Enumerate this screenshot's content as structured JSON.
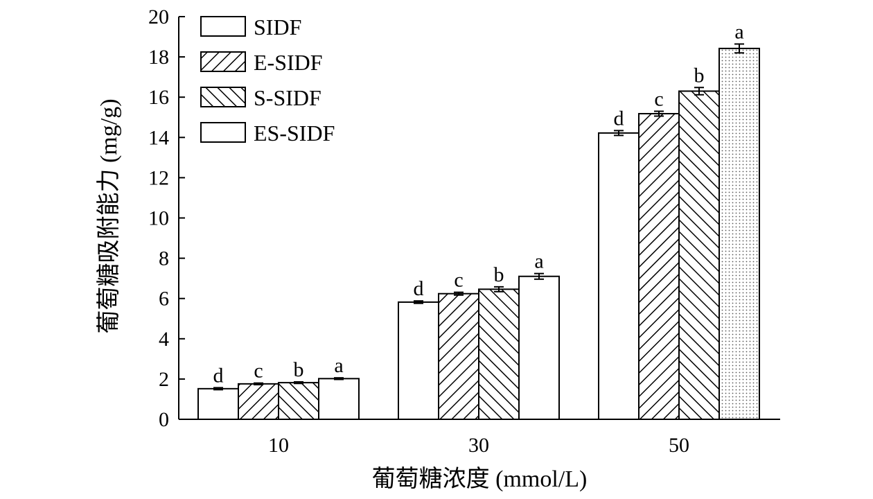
{
  "chart_data": {
    "type": "bar",
    "title": "",
    "xlabel": "葡萄糖浓度 (mmol/L)",
    "ylabel": "葡萄糖吸附能力 (mg/g)",
    "ylim": [
      0,
      20
    ],
    "yticks": [
      0,
      2,
      4,
      6,
      8,
      10,
      12,
      14,
      16,
      18,
      20
    ],
    "categories": [
      "10",
      "30",
      "50"
    ],
    "grid": false,
    "legend_position": "top-left",
    "series": [
      {
        "name": "SIDF",
        "fill": "none",
        "values": [
          1.52,
          5.82,
          14.22
        ],
        "errors": [
          0.05,
          0.06,
          0.12
        ],
        "labels": [
          "d",
          "d",
          "d"
        ]
      },
      {
        "name": "E-SIDF",
        "fill": "hatch-forward",
        "values": [
          1.76,
          6.24,
          15.18
        ],
        "errors": [
          0.04,
          0.07,
          0.12
        ],
        "labels": [
          "c",
          "c",
          "c"
        ]
      },
      {
        "name": "S-SIDF",
        "fill": "hatch-backward",
        "values": [
          1.82,
          6.46,
          16.3
        ],
        "errors": [
          0.04,
          0.12,
          0.18
        ],
        "labels": [
          "b",
          "b",
          "b"
        ]
      },
      {
        "name": "ES-SIDF",
        "fill": "none",
        "values": [
          2.02,
          7.1,
          18.42
        ],
        "errors": [
          0.04,
          0.14,
          0.22
        ],
        "labels": [
          "a",
          "a",
          "a"
        ],
        "fill_overrides": {
          "50": "dotted"
        }
      }
    ]
  }
}
